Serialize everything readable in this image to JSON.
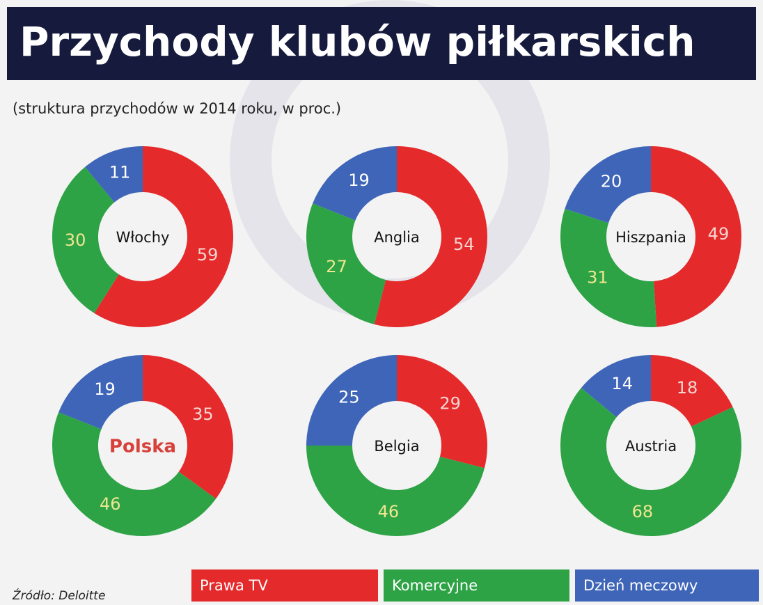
{
  "title": "Przychody klubów piłkarskich",
  "subtitle": "(struktura przychodów w 2014 roku, w proc.)",
  "source": "Źródło: Deloitte",
  "legend": {
    "categories": [
      "Prawa TV",
      "Komercyjne",
      "Dzień meczowy"
    ],
    "colors": [
      "#e52a2c",
      "#2ea346",
      "#3f65b8"
    ]
  },
  "chart_data": [
    {
      "type": "donut",
      "title": "Włochy",
      "values": [
        59,
        30,
        11
      ]
    },
    {
      "type": "donut",
      "title": "Anglia",
      "values": [
        54,
        27,
        19
      ]
    },
    {
      "type": "donut",
      "title": "Hiszpania",
      "values": [
        49,
        31,
        20
      ]
    },
    {
      "type": "donut",
      "title": "Polska",
      "values": [
        35,
        46,
        19
      ],
      "highlight": true
    },
    {
      "type": "donut",
      "title": "Belgia",
      "values": [
        29,
        46,
        25
      ]
    },
    {
      "type": "donut",
      "title": "Austria",
      "values": [
        18,
        68,
        14
      ]
    }
  ]
}
